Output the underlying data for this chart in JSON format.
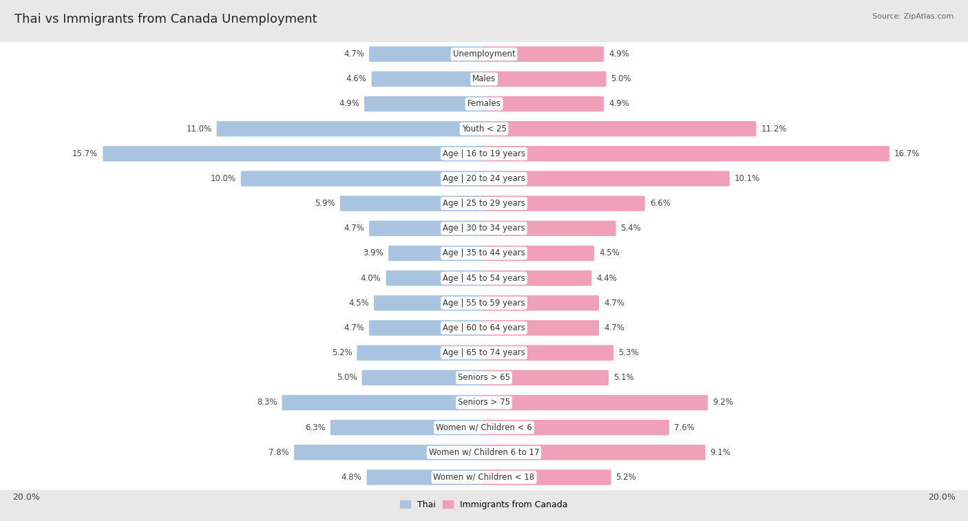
{
  "title": "Thai vs Immigrants from Canada Unemployment",
  "source": "Source: ZipAtlas.com",
  "categories": [
    "Unemployment",
    "Males",
    "Females",
    "Youth < 25",
    "Age | 16 to 19 years",
    "Age | 20 to 24 years",
    "Age | 25 to 29 years",
    "Age | 30 to 34 years",
    "Age | 35 to 44 years",
    "Age | 45 to 54 years",
    "Age | 55 to 59 years",
    "Age | 60 to 64 years",
    "Age | 65 to 74 years",
    "Seniors > 65",
    "Seniors > 75",
    "Women w/ Children < 6",
    "Women w/ Children 6 to 17",
    "Women w/ Children < 18"
  ],
  "thai_values": [
    4.7,
    4.6,
    4.9,
    11.0,
    15.7,
    10.0,
    5.9,
    4.7,
    3.9,
    4.0,
    4.5,
    4.7,
    5.2,
    5.0,
    8.3,
    6.3,
    7.8,
    4.8
  ],
  "canada_values": [
    4.9,
    5.0,
    4.9,
    11.2,
    16.7,
    10.1,
    6.6,
    5.4,
    4.5,
    4.4,
    4.7,
    4.7,
    5.3,
    5.1,
    9.2,
    7.6,
    9.1,
    5.2
  ],
  "thai_color": "#a8c4e0",
  "canada_color": "#f0a0b8",
  "thai_label": "Thai",
  "canada_label": "Immigrants from Canada",
  "max_value": 20.0,
  "bg_color": "#e8e8e8",
  "row_bg_color": "#f5f5f5",
  "title_fontsize": 13,
  "value_fontsize": 8.5,
  "source_fontsize": 8
}
